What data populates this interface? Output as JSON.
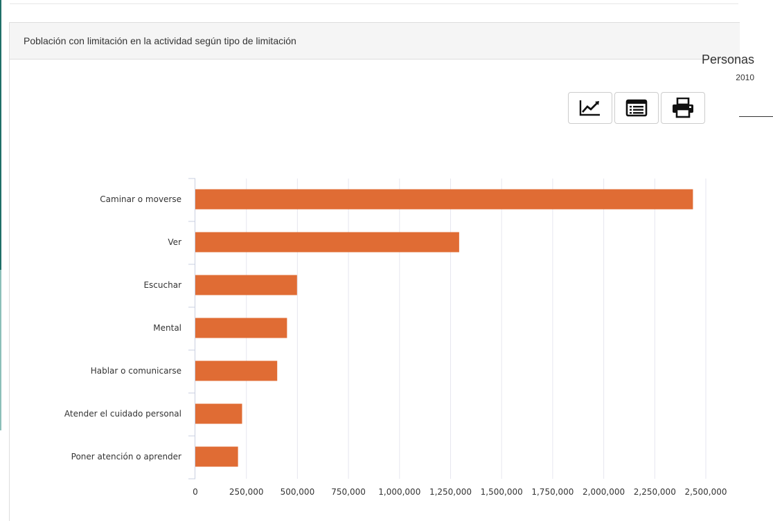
{
  "panel": {
    "title": "Población con limitación en la actividad según tipo de limitación",
    "unit": "Personas",
    "year": "2010"
  },
  "toolbar": {
    "buttons": [
      {
        "icon": "line-chart-icon"
      },
      {
        "icon": "table-icon"
      },
      {
        "icon": "print-icon"
      }
    ]
  },
  "colors": {
    "bar": "#e06c34",
    "grid": "#e6e6ef",
    "axis": "#c8cfe0"
  },
  "chart_data": {
    "type": "bar",
    "orientation": "horizontal",
    "categories": [
      "Caminar o moverse",
      "Ver",
      "Escuchar",
      "Mental",
      "Hablar o comunicarse",
      "Atender el cuidado personal",
      "Poner atención o aprender"
    ],
    "values": [
      2437000,
      1292000,
      498000,
      449000,
      401000,
      229000,
      209000
    ],
    "xlim": [
      0,
      2500000
    ],
    "x_ticks": [
      0,
      250000,
      500000,
      750000,
      1000000,
      1250000,
      1500000,
      1750000,
      2000000,
      2250000,
      2500000
    ],
    "x_tick_labels": [
      "0",
      "250,000",
      "500,000",
      "750,000",
      "1,000,000",
      "1,250,000",
      "1,500,000",
      "1,750,000",
      "2,000,000",
      "2,250,000",
      "2,500,000"
    ],
    "grid": true,
    "legend": "none"
  }
}
